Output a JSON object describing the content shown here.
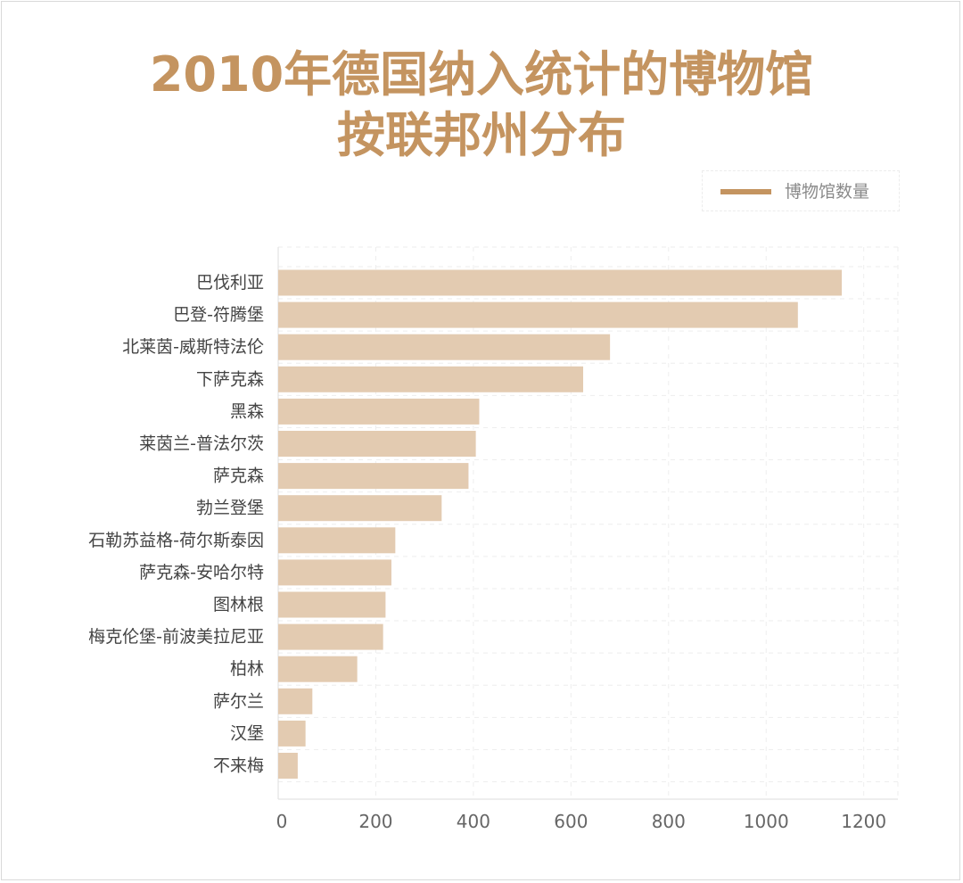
{
  "title": {
    "line1": "2010年德国纳入统计的博物馆",
    "line2": "按联邦州分布"
  },
  "colors": {
    "title": "#c49460",
    "bar": "#e3cbb1",
    "legend_swatch": "#c49460",
    "grid": "#eeeeee"
  },
  "chart_data": {
    "type": "bar",
    "orientation": "horizontal",
    "categories": [
      "巴伐利亚",
      "巴登-符腾堡",
      "北莱茵-威斯特法伦",
      "下萨克森",
      "黑森",
      "莱茵兰-普法尔茨",
      "萨克森",
      "勃兰登堡",
      "石勒苏益格-荷尔斯泰因",
      "萨克森-安哈尔特",
      "图林根",
      "梅克伦堡-前波美拉尼亚",
      "柏林",
      "萨尔兰",
      "汉堡",
      "不来梅"
    ],
    "series": [
      {
        "name": "博物馆数量",
        "values": [
          1155,
          1065,
          680,
          625,
          412,
          405,
          390,
          335,
          240,
          232,
          220,
          215,
          162,
          70,
          56,
          40
        ]
      }
    ],
    "xlim": [
      0,
      1270
    ],
    "xticks": [
      "0",
      "200",
      "400",
      "600",
      "800",
      "1000",
      "1200"
    ],
    "xtick_values": [
      0,
      200,
      400,
      600,
      800,
      1000,
      1200
    ],
    "grid": true,
    "legend_position": "top-right"
  }
}
